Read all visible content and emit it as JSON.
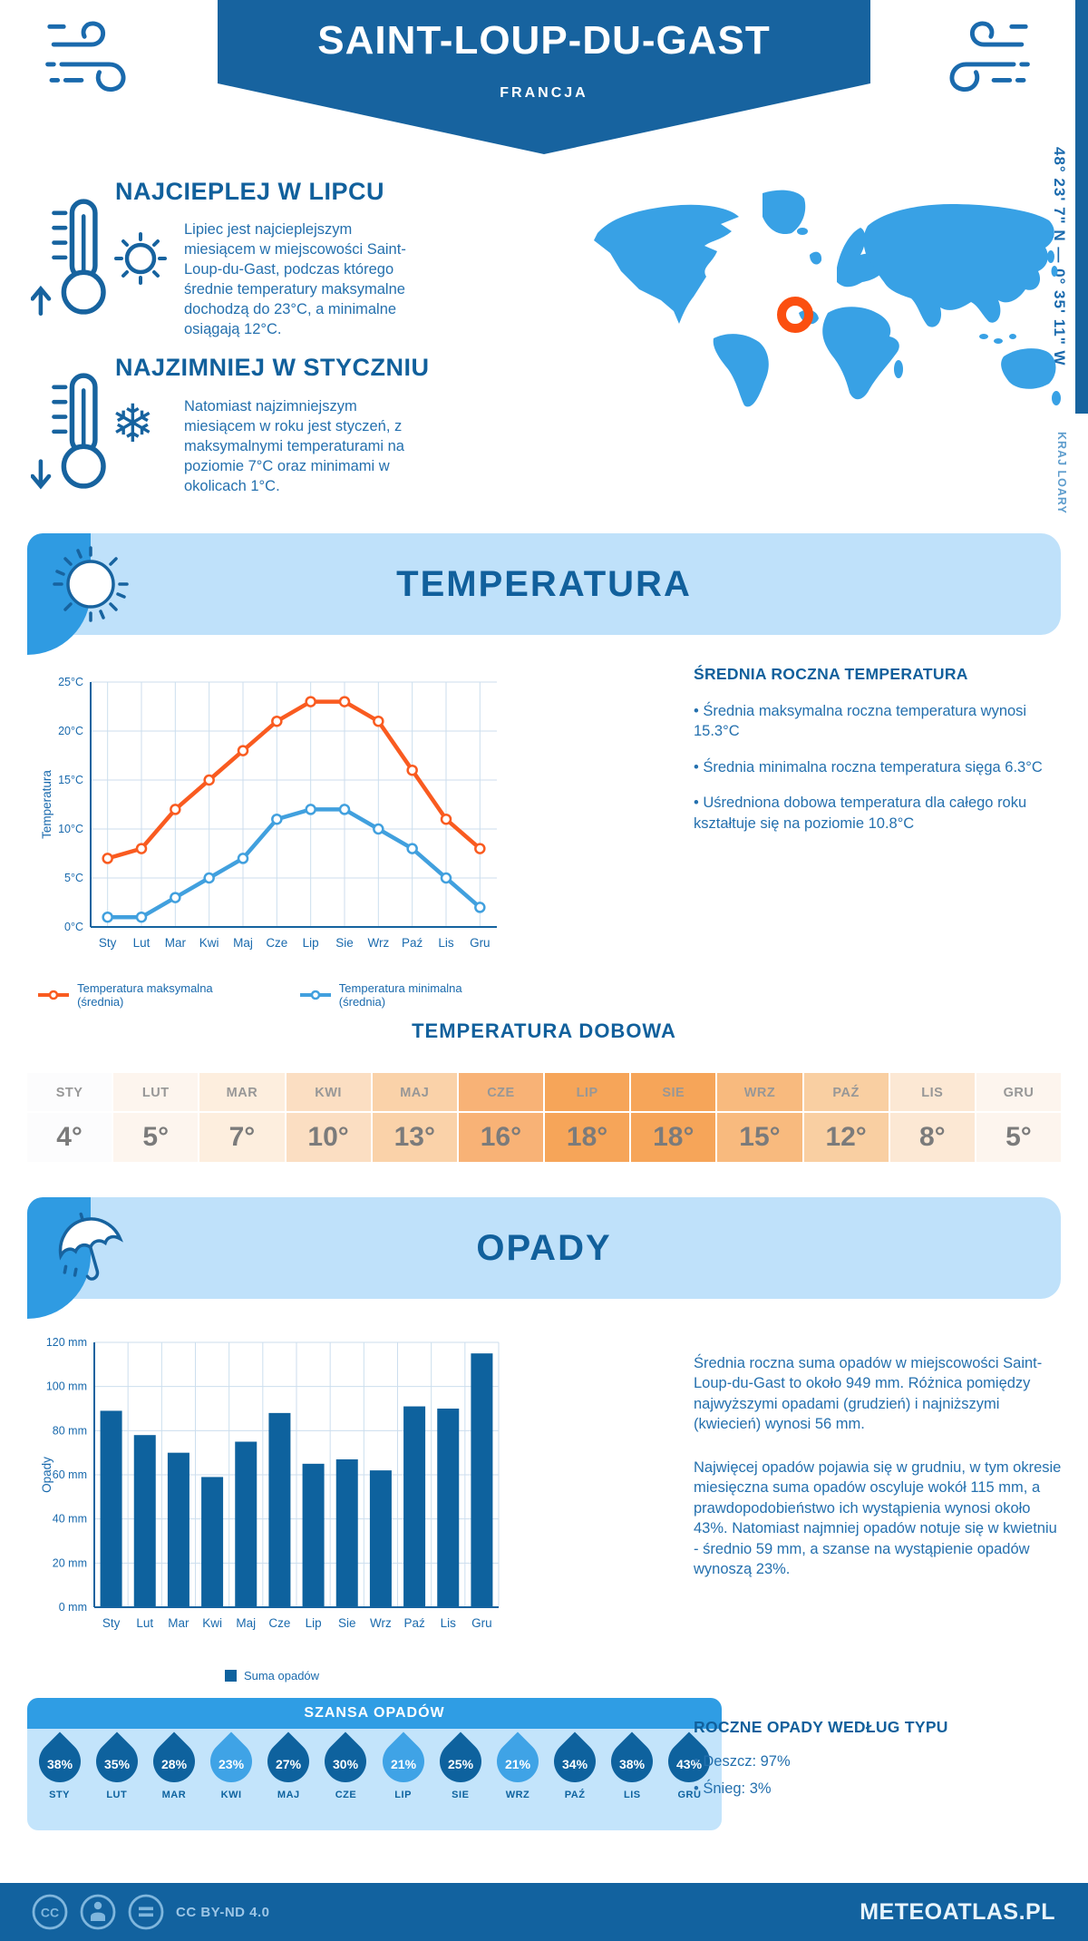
{
  "header": {
    "title": "SAINT-LOUP-DU-GAST",
    "country": "FRANCJA"
  },
  "location": {
    "coords": "48° 23' 7\" N — 0° 35' 11\" W",
    "region": "KRAJ LOARY"
  },
  "warmest": {
    "title": "NAJCIEPLEJ W LIPCU",
    "text": "Lipiec jest najcieplejszym miesiącem w miejscowości Saint-Loup-du-Gast, podczas którego średnie temperatury maksymalne dochodzą do 23°C, a minimalne osiągają 12°C."
  },
  "coldest": {
    "title": "NAJZIMNIEJ W STYCZNIU",
    "text": "Natomiast najzimniejszym miesiącem w roku jest styczeń, z maksymalnymi temperaturami na poziomie 7°C oraz minimami w okolicach 1°C."
  },
  "temperature_section": {
    "title": "TEMPERATURA",
    "legend": [
      "Temperatura maksymalna (średnia)",
      "Temperatura minimalna (średnia)"
    ],
    "annual": {
      "title": "ŚREDNIA ROCZNA TEMPERATURA",
      "bullets": [
        "• Średnia maksymalna roczna temperatura wynosi 15.3°C",
        "• Średnia minimalna roczna temperatura sięga 6.3°C",
        "• Uśredniona dobowa temperatura dla całego roku kształtuje się na poziomie 10.8°C"
      ]
    },
    "daily": {
      "title": "TEMPERATURA DOBOWA",
      "months": [
        "STY",
        "LUT",
        "MAR",
        "KWI",
        "MAJ",
        "CZE",
        "LIP",
        "SIE",
        "WRZ",
        "PAŹ",
        "LIS",
        "GRU"
      ],
      "values": [
        "4°",
        "5°",
        "7°",
        "10°",
        "13°",
        "16°",
        "18°",
        "18°",
        "15°",
        "12°",
        "8°",
        "5°"
      ],
      "cell_colors": [
        "#fcfcfd",
        "#fdf5ee",
        "#fdeede",
        "#fbdec2",
        "#fad2a9",
        "#f8b276",
        "#f6a559",
        "#f6a559",
        "#f8ba7e",
        "#f9cfa2",
        "#fce8d4",
        "#fdf5ee"
      ]
    }
  },
  "precipitation_section": {
    "title": "OPADY",
    "legend": "Suma opadów",
    "para1": "Średnia roczna suma opadów w miejscowości Saint-Loup-du-Gast to około 949 mm. Różnica pomiędzy najwyższymi opadami (grudzień) i najniższymi (kwiecień) wynosi 56 mm.",
    "para2": "Najwięcej opadów pojawia się w grudniu, w tym okresie miesięczna suma opadów oscyluje wokół 115 mm, a prawdopodobieństwo ich wystąpienia wynosi około 43%. Natomiast najmniej opadów notuje się w kwietniu - średnio 59 mm, a szanse na wystąpienie opadów wynoszą 23%.",
    "chance": {
      "title": "SZANSA OPADÓW",
      "months": [
        "STY",
        "LUT",
        "MAR",
        "KWI",
        "MAJ",
        "CZE",
        "LIP",
        "SIE",
        "WRZ",
        "PAŹ",
        "LIS",
        "GRU"
      ],
      "values": [
        "38%",
        "35%",
        "28%",
        "23%",
        "27%",
        "30%",
        "21%",
        "25%",
        "21%",
        "34%",
        "38%",
        "43%"
      ],
      "light_indices": [
        3,
        6,
        8
      ],
      "drop_dark": "#0e629e",
      "drop_light": "#3fa3e6"
    },
    "by_type": {
      "title": "ROCZNE OPADY WEDŁUG TYPU",
      "bullets": [
        "• Deszcz: 97%",
        "• Śnieg: 3%"
      ]
    }
  },
  "map": {
    "fill": "#38a1e5",
    "marker_color": "#fb4f10"
  },
  "footer": {
    "license": "CC BY-ND 4.0",
    "brand": "METEOATLAS.PL"
  },
  "chart_data": [
    {
      "type": "line",
      "title": "Temperatura",
      "categories": [
        "Sty",
        "Lut",
        "Mar",
        "Kwi",
        "Maj",
        "Cze",
        "Lip",
        "Sie",
        "Wrz",
        "Paź",
        "Lis",
        "Gru"
      ],
      "series": [
        {
          "name": "Temperatura maksymalna (średnia)",
          "color": "#f95b20",
          "values": [
            7,
            8,
            12,
            15,
            18,
            21,
            23,
            23,
            21,
            16,
            11,
            8
          ]
        },
        {
          "name": "Temperatura minimalna (średnia)",
          "color": "#41a0de",
          "values": [
            1,
            1,
            3,
            5,
            7,
            11,
            12,
            12,
            10,
            8,
            5,
            2
          ]
        }
      ],
      "xlabel": "",
      "ylabel": "Temperatura",
      "ylim": [
        0,
        25
      ],
      "ytick": 5,
      "yunit": "°C",
      "grid": true,
      "legend_position": "bottom"
    },
    {
      "type": "bar",
      "title": "Opady",
      "categories": [
        "Sty",
        "Lut",
        "Mar",
        "Kwi",
        "Maj",
        "Cze",
        "Lip",
        "Sie",
        "Wrz",
        "Paź",
        "Lis",
        "Gru"
      ],
      "values": [
        89,
        78,
        70,
        59,
        75,
        88,
        65,
        67,
        62,
        91,
        90,
        115
      ],
      "name": "Suma opadów",
      "color": "#0e629e",
      "xlabel": "",
      "ylabel": "Opady",
      "ylim": [
        0,
        120
      ],
      "ytick": 20,
      "yunit": " mm",
      "grid": true,
      "legend_position": "bottom"
    }
  ]
}
